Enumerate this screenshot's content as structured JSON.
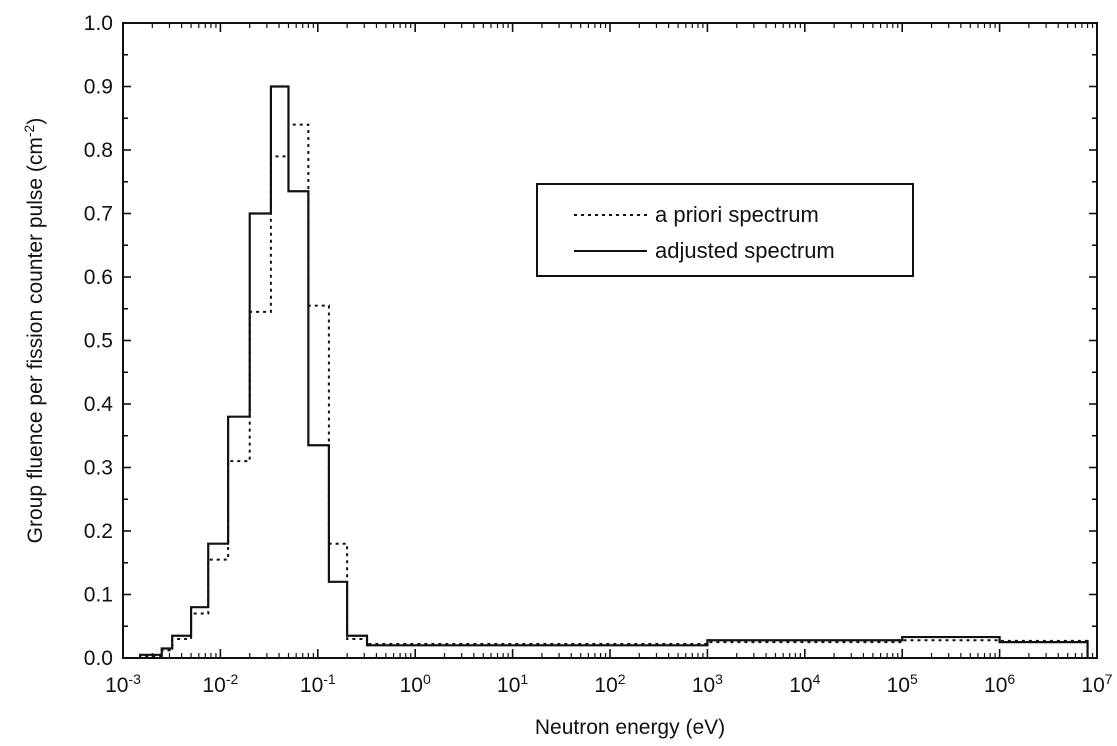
{
  "chart_data": {
    "type": "line",
    "step": true,
    "xscale": "log",
    "xlabel": "Neutron energy (eV)",
    "ylabel": "Group fluence per fission counter pulse (cm",
    "ylabel_unit_power": "-2",
    "ylabel_close": ")",
    "xlim": [
      0.001,
      10000000
    ],
    "ylim": [
      0.0,
      1.0
    ],
    "x_ticks": [
      {
        "base": "10",
        "exp": "-3",
        "value": 0.001
      },
      {
        "base": "10",
        "exp": "-2",
        "value": 0.01
      },
      {
        "base": "10",
        "exp": "-1",
        "value": 0.1
      },
      {
        "base": "10",
        "exp": "0",
        "value": 1
      },
      {
        "base": "10",
        "exp": "1",
        "value": 10
      },
      {
        "base": "10",
        "exp": "2",
        "value": 100
      },
      {
        "base": "10",
        "exp": "3",
        "value": 1000
      },
      {
        "base": "10",
        "exp": "4",
        "value": 10000
      },
      {
        "base": "10",
        "exp": "5",
        "value": 100000
      },
      {
        "base": "10",
        "exp": "6",
        "value": 1000000
      },
      {
        "base": "10",
        "exp": "7",
        "value": 10000000
      }
    ],
    "y_ticks": [
      "0.0",
      "0.1",
      "0.2",
      "0.3",
      "0.4",
      "0.5",
      "0.6",
      "0.7",
      "0.8",
      "0.9",
      "1.0"
    ],
    "legend_position": "upper-center",
    "series": [
      {
        "name": "a priori spectrum",
        "style": "dotted",
        "color": "#111111",
        "edges": [
          0.0015,
          0.0025,
          0.0032,
          0.005,
          0.0075,
          0.012,
          0.02,
          0.033,
          0.05,
          0.08,
          0.13,
          0.2,
          0.32,
          1000,
          100000,
          1000000,
          8000000
        ],
        "values": [
          0.003,
          0.012,
          0.03,
          0.07,
          0.155,
          0.31,
          0.545,
          0.79,
          0.84,
          0.555,
          0.18,
          0.03,
          0.022,
          0.025,
          0.028,
          0.027
        ]
      },
      {
        "name": "adjusted spectrum",
        "style": "solid",
        "color": "#111111",
        "edges": [
          0.0015,
          0.0025,
          0.0032,
          0.005,
          0.0075,
          0.012,
          0.02,
          0.033,
          0.05,
          0.08,
          0.13,
          0.2,
          0.32,
          1000,
          100000,
          1000000,
          8000000
        ],
        "values": [
          0.005,
          0.015,
          0.035,
          0.08,
          0.18,
          0.38,
          0.7,
          0.9,
          0.735,
          0.335,
          0.12,
          0.035,
          0.02,
          0.028,
          0.033,
          0.025
        ]
      }
    ]
  }
}
